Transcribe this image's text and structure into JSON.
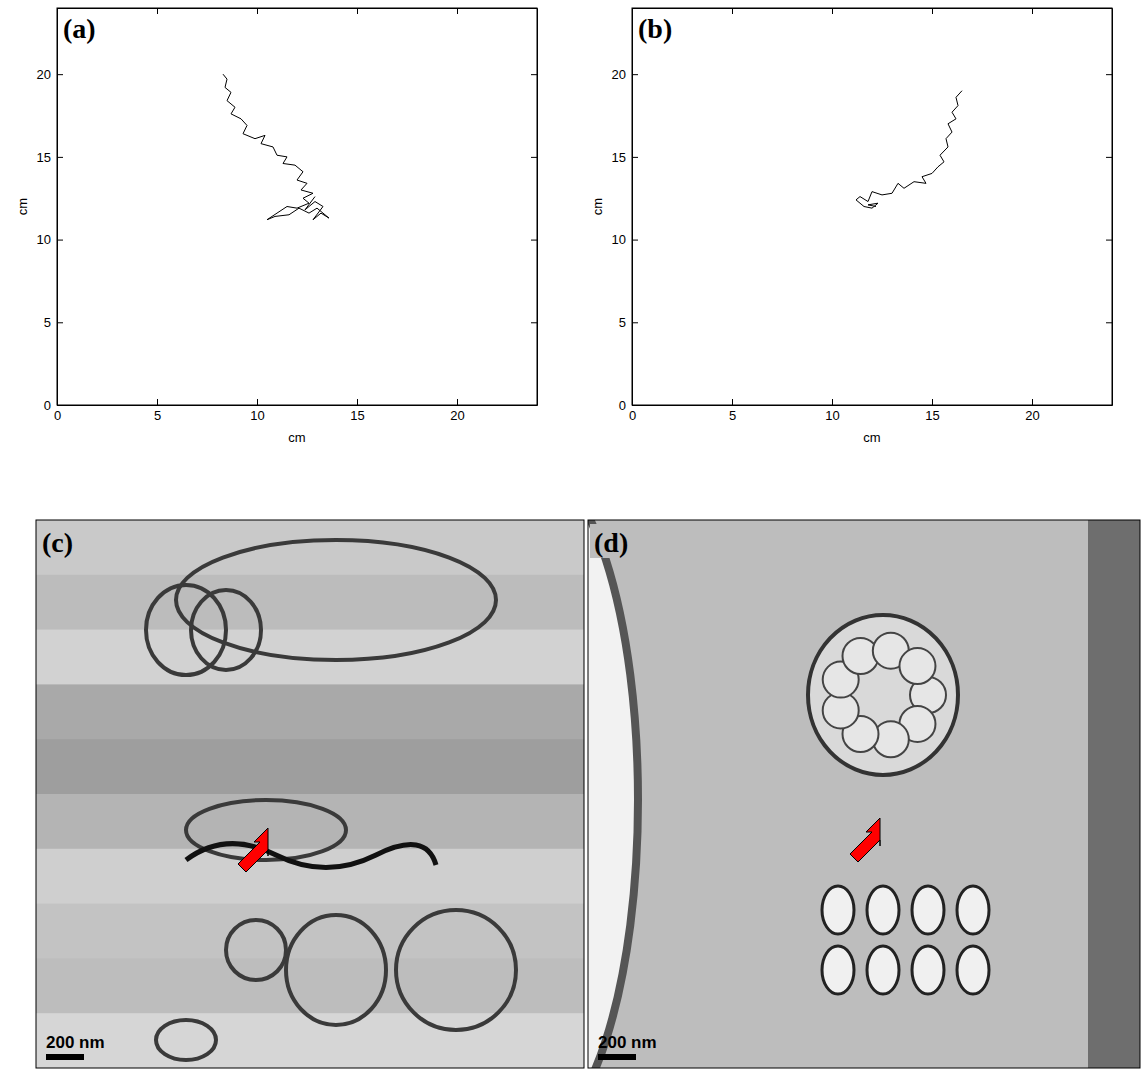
{
  "chart_data": [
    {
      "type": "line",
      "title": "(a)",
      "x_label": "cm",
      "y_label": "cm",
      "color": "#000000",
      "xlim": [
        0,
        24
      ],
      "ylim": [
        0,
        24
      ],
      "xticks": [
        0,
        5,
        10,
        15,
        20
      ],
      "yticks": [
        0,
        5,
        10,
        15,
        20
      ],
      "x": [
        8.3,
        8.5,
        8.4,
        8.7,
        8.5,
        8.9,
        8.7,
        9.2,
        9.5,
        9.3,
        9.9,
        10.4,
        10.2,
        10.8,
        11.0,
        11.5,
        11.3,
        11.9,
        12.3,
        12.0,
        12.5,
        12.2,
        12.8,
        12.3,
        12.6,
        12.0,
        11.5,
        11.0,
        10.5,
        10.9,
        11.6,
        12.1,
        12.6,
        13.0,
        13.6,
        13.2,
        12.8,
        13.3,
        12.9,
        12.4,
        12.9
      ],
      "values": [
        20.0,
        19.7,
        19.2,
        18.9,
        18.4,
        18.0,
        17.6,
        17.3,
        16.9,
        16.4,
        16.1,
        16.3,
        15.8,
        15.6,
        15.1,
        15.0,
        14.6,
        14.5,
        14.1,
        13.6,
        13.4,
        13.0,
        12.8,
        12.5,
        12.2,
        11.9,
        12.0,
        11.6,
        11.2,
        11.4,
        11.5,
        11.9,
        11.6,
        11.9,
        11.3,
        11.6,
        11.2,
        12.0,
        12.3,
        11.8,
        12.6
      ]
    },
    {
      "type": "line",
      "title": "(b)",
      "x_label": "cm",
      "y_label": "cm",
      "color": "#000000",
      "xlim": [
        0,
        24
      ],
      "ylim": [
        0,
        24
      ],
      "xticks": [
        0,
        5,
        10,
        15,
        20
      ],
      "yticks": [
        0,
        5,
        10,
        15,
        20
      ],
      "x": [
        16.5,
        16.2,
        16.3,
        16.0,
        16.2,
        15.8,
        16.0,
        15.7,
        15.8,
        15.4,
        15.6,
        15.3,
        15.0,
        14.5,
        14.7,
        14.1,
        13.6,
        13.3,
        13.0,
        12.5,
        12.0,
        11.8,
        11.4,
        11.2,
        11.6,
        12.0,
        12.3,
        11.8,
        12.2
      ],
      "values": [
        19.0,
        18.6,
        18.1,
        17.7,
        17.3,
        17.0,
        16.5,
        16.1,
        15.6,
        15.1,
        14.7,
        14.4,
        14.0,
        13.8,
        13.4,
        13.5,
        13.1,
        13.4,
        12.8,
        12.7,
        12.9,
        12.3,
        12.6,
        12.4,
        12.0,
        11.9,
        12.2,
        12.1,
        12.0
      ]
    }
  ],
  "images": [
    {
      "label": "(c)",
      "scale_bar": "200 nm"
    },
    {
      "label": "(d)",
      "scale_bar": "200 nm"
    }
  ]
}
